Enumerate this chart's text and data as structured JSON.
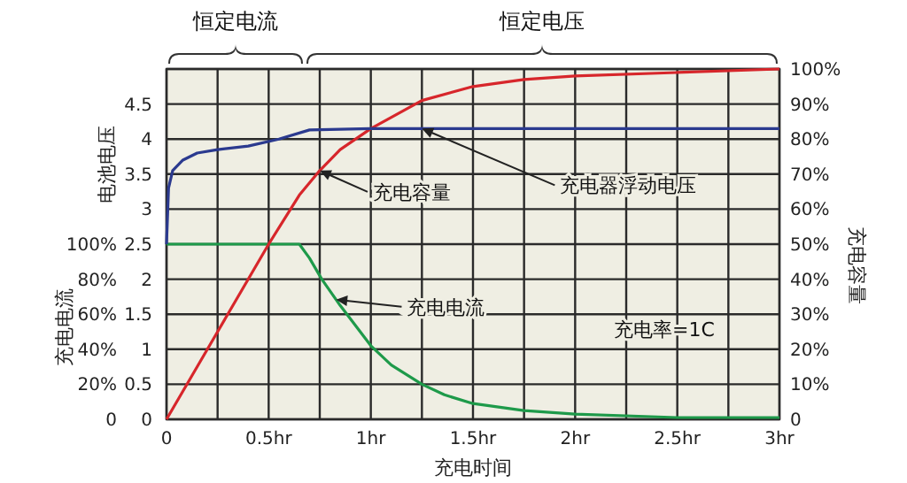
{
  "chart_data": {
    "type": "line",
    "xlabel": "充电时间",
    "ylabel": "电池电压",
    "y2label": "充电容量",
    "y3label": "充电电流",
    "xlim": [
      0,
      3
    ],
    "xticks": [
      {
        "value": 0,
        "label": "0"
      },
      {
        "value": 0.25,
        "label": null
      },
      {
        "value": 0.5,
        "label": "0.5hr"
      },
      {
        "value": 0.75,
        "label": null
      },
      {
        "value": 1,
        "label": "1hr"
      },
      {
        "value": 1.25,
        "label": null
      },
      {
        "value": 1.5,
        "label": "1.5hr"
      },
      {
        "value": 1.75,
        "label": null
      },
      {
        "value": 2,
        "label": "2hr"
      },
      {
        "value": 2.25,
        "label": null
      },
      {
        "value": 2.5,
        "label": "2.5hr"
      },
      {
        "value": 2.75,
        "label": null
      },
      {
        "value": 3,
        "label": "3hr"
      }
    ],
    "ylim": [
      0,
      5
    ],
    "yticks": [
      0,
      0.5,
      1.0,
      1.5,
      2.0,
      2.5,
      3.0,
      3.5,
      4.0,
      4.5,
      {
        "value": 5,
        "label": null
      }
    ],
    "y2lim": [
      0,
      100
    ],
    "y2ticks": [
      0,
      {
        "value": 10,
        "label": "10%"
      },
      {
        "value": 20,
        "label": "20%"
      },
      {
        "value": 30,
        "label": "30%"
      },
      {
        "value": 40,
        "label": "40%"
      },
      {
        "value": 50,
        "label": "50%"
      },
      {
        "value": 60,
        "label": "60%"
      },
      {
        "value": 70,
        "label": "70%"
      },
      {
        "value": 80,
        "label": "80%"
      },
      {
        "value": 90,
        "label": "90%"
      },
      {
        "value": 100,
        "label": "100%"
      }
    ],
    "y3lim": [
      0,
      200
    ],
    "y3ticks": [
      0,
      {
        "value": 20,
        "label": "20%"
      },
      {
        "value": 40,
        "label": "40%"
      },
      {
        "value": 60,
        "label": "60%"
      },
      {
        "value": 80,
        "label": "80%"
      },
      {
        "value": 100,
        "label": "100%"
      }
    ],
    "grid": true,
    "marker": "none",
    "line_style": "solid",
    "series": [
      {
        "name": "充电器浮动电压",
        "color": "#2b3a8f",
        "x": [
          0,
          0.01,
          0.03,
          0.08,
          0.15,
          0.25,
          0.4,
          0.55,
          0.7,
          1,
          1.5,
          2,
          2.5,
          3
        ],
        "values": [
          2.5,
          3.3,
          3.55,
          3.7,
          3.8,
          3.85,
          3.9,
          4.0,
          4.13,
          4.15,
          4.15,
          4.15,
          4.15,
          4.15
        ]
      },
      {
        "name": "充电容量",
        "color": "#d7262b",
        "axis": "y2",
        "x": [
          0,
          0.25,
          0.5,
          0.65,
          0.75,
          0.85,
          1,
          1.25,
          1.5,
          1.75,
          2,
          2.5,
          3
        ],
        "values": [
          0,
          25,
          50,
          64,
          71,
          77,
          83,
          91,
          95,
          97,
          98,
          99,
          100
        ]
      },
      {
        "name": "充电电流",
        "color": "#1e9a4a",
        "axis": "y3",
        "x": [
          0,
          0.65,
          0.7,
          0.76,
          0.85,
          1,
          1.1,
          1.25,
          1.36,
          1.5,
          1.75,
          2,
          2.5,
          3
        ],
        "values": [
          100,
          100,
          92,
          80,
          65,
          42,
          31,
          20,
          14,
          9,
          5,
          3,
          1,
          1
        ]
      }
    ],
    "annotations": [
      "充电率=1C",
      "恒定电流",
      "恒定电压"
    ]
  }
}
